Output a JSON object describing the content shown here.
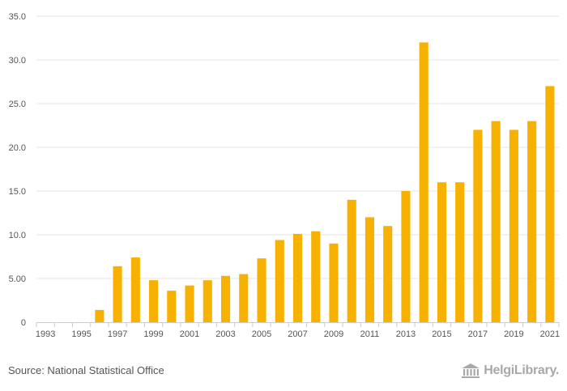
{
  "chart_data": {
    "type": "bar",
    "title": "",
    "xlabel": "",
    "ylabel": "",
    "ylim": [
      0,
      35
    ],
    "y_ticks": [
      {
        "value": 0,
        "label": "0"
      },
      {
        "value": 5,
        "label": "5.00"
      },
      {
        "value": 10,
        "label": "10.0"
      },
      {
        "value": 15,
        "label": "15.0"
      },
      {
        "value": 20,
        "label": "20.0"
      },
      {
        "value": 25,
        "label": "25.0"
      },
      {
        "value": 30,
        "label": "30.0"
      },
      {
        "value": 35,
        "label": "35.0"
      }
    ],
    "x_tick_labels": [
      "1993",
      "1995",
      "1997",
      "1999",
      "2001",
      "2003",
      "2005",
      "2007",
      "2009",
      "2011",
      "2013",
      "2015",
      "2017",
      "2019",
      "2021"
    ],
    "categories": [
      "1993",
      "1994",
      "1995",
      "1996",
      "1997",
      "1998",
      "1999",
      "2000",
      "2001",
      "2002",
      "2003",
      "2004",
      "2005",
      "2006",
      "2007",
      "2008",
      "2009",
      "2010",
      "2011",
      "2012",
      "2013",
      "2014",
      "2015",
      "2016",
      "2017",
      "2018",
      "2019",
      "2020",
      "2021"
    ],
    "values": [
      0,
      0,
      0,
      1.4,
      6.4,
      7.4,
      4.8,
      3.6,
      4.2,
      4.8,
      5.3,
      5.5,
      7.3,
      9.4,
      10.1,
      10.4,
      9.0,
      14.0,
      12.0,
      11.0,
      15.0,
      32.0,
      16.0,
      16.0,
      22.0,
      23.0,
      22.0,
      23.0,
      27.0
    ],
    "grid": true,
    "legend": "none",
    "colors": {
      "bar": "#f7b100",
      "grid": "#e6e6e6",
      "axis": "#cccccc",
      "text": "#555555"
    }
  },
  "footer": {
    "source": "Source: National Statistical Office",
    "brand": "HelgiLibrary."
  },
  "brand_icon": "library-building-icon"
}
